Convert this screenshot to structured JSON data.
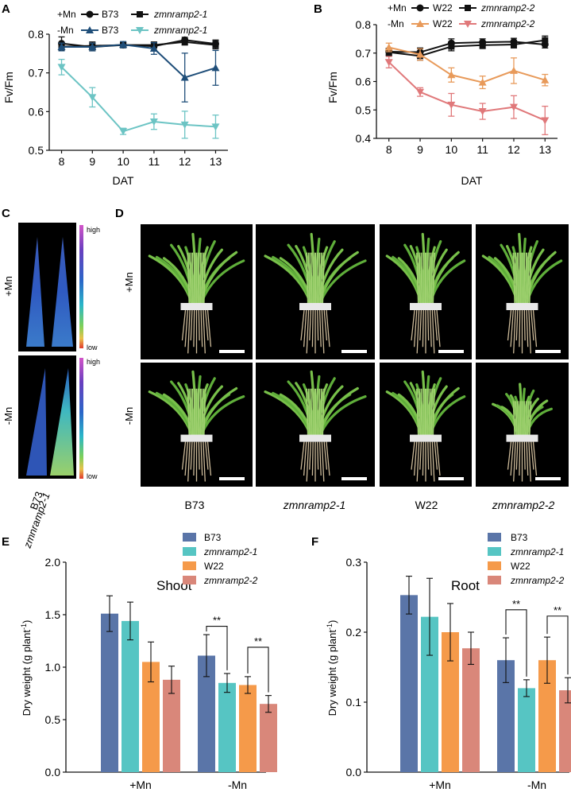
{
  "colors": {
    "black": "#111111",
    "navy": "#1f4e79",
    "teal": "#6cc4c4",
    "orange": "#e89a5a",
    "pink": "#e0787a",
    "b73": "#5a75a8",
    "mut1": "#56c5c3",
    "w22": "#f59a4a",
    "mut2": "#d9877a"
  },
  "panelA": {
    "letter": "A",
    "ylabel": "Fv/Fm",
    "xlabel": "DAT",
    "legend": {
      "plus": "+Mn",
      "minus": "-Mn",
      "wt": "B73",
      "mut": "zmnramp2-1"
    }
  },
  "panelB": {
    "letter": "B",
    "ylabel": "Fv/Fm",
    "xlabel": "DAT",
    "legend": {
      "plus": "+Mn",
      "minus": "-Mn",
      "wt": "W22",
      "mut": "zmnramp2-2"
    }
  },
  "panelC": {
    "letter": "C",
    "row1": "+Mn",
    "row2": "-Mn",
    "high": "high",
    "low": "low",
    "col1": "B73",
    "col2": "zmnramp2-1"
  },
  "panelD": {
    "letter": "D",
    "row1": "+Mn",
    "row2": "-Mn",
    "cols": [
      "B73",
      "zmnramp2-1",
      "W22",
      "zmnramp2-2"
    ]
  },
  "panelE": {
    "letter": "E",
    "title": "Shoot",
    "ylabel": "Dry weight (g plant",
    "ylabel_sup": "-1",
    "ylabel_end": ")",
    "legend": [
      "B73",
      "zmnramp2-1",
      "W22",
      "zmnramp2-2"
    ],
    "sig": "**"
  },
  "panelF": {
    "letter": "F",
    "title": "Root",
    "ylabel": "Dry weight (g plant",
    "ylabel_sup": "-1",
    "ylabel_end": ")",
    "legend": [
      "B73",
      "zmnramp2-1",
      "W22",
      "zmnramp2-2"
    ],
    "sig": "**"
  },
  "chart_data": [
    {
      "type": "line",
      "panel": "A",
      "title": "",
      "xlabel": "DAT",
      "ylabel": "Fv/Fm",
      "x": [
        8,
        9,
        10,
        11,
        12,
        13
      ],
      "ylim": [
        0.5,
        0.8
      ],
      "yticks": [
        0.5,
        0.6,
        0.7,
        0.8
      ],
      "series": [
        {
          "name": "+Mn B73",
          "color": "#111111",
          "marker": "circle",
          "values": [
            0.776,
            0.767,
            0.772,
            0.769,
            0.785,
            0.775
          ],
          "err": [
            0.017,
            0.01,
            0.007,
            0.01,
            0.007,
            0.01
          ]
        },
        {
          "name": "+Mn zmnramp2-1",
          "color": "#111111",
          "marker": "square",
          "values": [
            0.768,
            0.77,
            0.772,
            0.772,
            0.78,
            0.772
          ],
          "err": [
            0.01,
            0.01,
            0.006,
            0.008,
            0.008,
            0.01
          ]
        },
        {
          "name": "-Mn B73",
          "color": "#1f4e79",
          "marker": "triangle",
          "values": [
            0.767,
            0.767,
            0.773,
            0.763,
            0.688,
            0.713
          ],
          "err": [
            0.01,
            0.01,
            0.008,
            0.015,
            0.063,
            0.045
          ]
        },
        {
          "name": "-Mn zmnramp2-1",
          "color": "#6cc4c4",
          "marker": "tri-down",
          "values": [
            0.715,
            0.637,
            0.549,
            0.574,
            0.566,
            0.561
          ],
          "err": [
            0.02,
            0.025,
            0.008,
            0.02,
            0.035,
            0.03
          ]
        }
      ]
    },
    {
      "type": "line",
      "panel": "B",
      "title": "",
      "xlabel": "DAT",
      "ylabel": "Fv/Fm",
      "x": [
        8,
        9,
        10,
        11,
        12,
        13
      ],
      "ylim": [
        0.4,
        0.8
      ],
      "yticks": [
        0.4,
        0.5,
        0.6,
        0.7,
        0.8
      ],
      "series": [
        {
          "name": "+Mn W22",
          "color": "#111111",
          "marker": "circle",
          "values": [
            0.705,
            0.703,
            0.735,
            0.738,
            0.74,
            0.73
          ],
          "err": [
            0.012,
            0.015,
            0.015,
            0.012,
            0.012,
            0.012
          ]
        },
        {
          "name": "+Mn zmnramp2-2",
          "color": "#111111",
          "marker": "square",
          "values": [
            0.703,
            0.69,
            0.723,
            0.728,
            0.73,
            0.745
          ],
          "err": [
            0.012,
            0.015,
            0.015,
            0.012,
            0.012,
            0.015
          ]
        },
        {
          "name": "-Mn W22",
          "color": "#e89a5a",
          "marker": "triangle",
          "values": [
            0.72,
            0.695,
            0.623,
            0.597,
            0.638,
            0.605
          ],
          "err": [
            0.015,
            0.02,
            0.025,
            0.022,
            0.045,
            0.02
          ]
        },
        {
          "name": "-Mn zmnramp2-2",
          "color": "#e0787a",
          "marker": "tri-down",
          "values": [
            0.668,
            0.563,
            0.518,
            0.495,
            0.51,
            0.463
          ],
          "err": [
            0.02,
            0.015,
            0.04,
            0.028,
            0.04,
            0.05
          ]
        }
      ]
    },
    {
      "type": "bar",
      "panel": "E",
      "title": "Shoot",
      "xlabel": "",
      "ylabel": "Dry weight (g plant-1)",
      "categories": [
        "+Mn",
        "-Mn"
      ],
      "ylim": [
        0,
        2.0
      ],
      "yticks": [
        0.0,
        0.5,
        1.0,
        1.5,
        2.0
      ],
      "series": [
        {
          "name": "B73",
          "color": "#5a75a8",
          "values": [
            1.51,
            1.11
          ],
          "err": [
            0.17,
            0.2
          ]
        },
        {
          "name": "zmnramp2-1",
          "color": "#56c5c3",
          "values": [
            1.44,
            0.85
          ],
          "err": [
            0.18,
            0.09
          ]
        },
        {
          "name": "W22",
          "color": "#f59a4a",
          "values": [
            1.05,
            0.83
          ],
          "err": [
            0.19,
            0.08
          ]
        },
        {
          "name": "zmnramp2-2",
          "color": "#d9877a",
          "values": [
            0.88,
            0.65
          ],
          "err": [
            0.13,
            0.08
          ]
        }
      ]
    },
    {
      "type": "bar",
      "panel": "F",
      "title": "Root",
      "xlabel": "",
      "ylabel": "Dry weight (g plant-1)",
      "categories": [
        "+Mn",
        "-Mn"
      ],
      "ylim": [
        0,
        0.3
      ],
      "yticks": [
        0.0,
        0.1,
        0.2,
        0.3
      ],
      "series": [
        {
          "name": "B73",
          "color": "#5a75a8",
          "values": [
            0.253,
            0.16
          ],
          "err": [
            0.027,
            0.032
          ]
        },
        {
          "name": "zmnramp2-1",
          "color": "#56c5c3",
          "values": [
            0.222,
            0.12
          ],
          "err": [
            0.055,
            0.012
          ]
        },
        {
          "name": "W22",
          "color": "#f59a4a",
          "values": [
            0.2,
            0.16
          ],
          "err": [
            0.041,
            0.033
          ]
        },
        {
          "name": "zmnramp2-2",
          "color": "#d9877a",
          "values": [
            0.177,
            0.117
          ],
          "err": [
            0.023,
            0.018
          ]
        }
      ]
    }
  ]
}
